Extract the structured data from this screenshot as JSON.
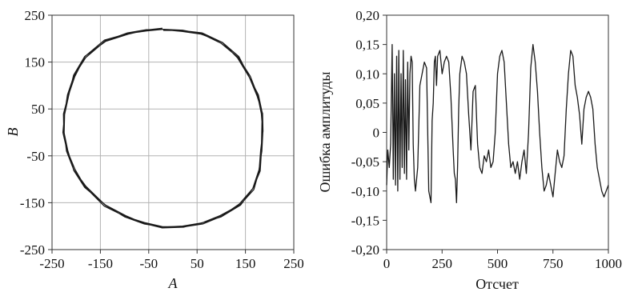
{
  "chart_data": [
    {
      "type": "line",
      "xlabel": "A",
      "ylabel": "B",
      "xlim": [
        -250,
        250
      ],
      "ylim": [
        -250,
        250
      ],
      "xticks": [
        "-250",
        "-150",
        "-50",
        "50",
        "150",
        "250"
      ],
      "yticks": [
        "250",
        "150",
        "50",
        "-50",
        "-150",
        "-250"
      ],
      "grid": true,
      "series": [
        {
          "values_note": "closed loop",
          "x": [
            -20,
            20,
            60,
            100,
            135,
            160,
            175,
            183,
            186,
            184,
            178,
            165,
            140,
            100,
            60,
            20,
            -20,
            -60,
            -100,
            -140,
            -180,
            -205,
            -220,
            -225,
            -224,
            -218,
            -205,
            -180,
            -140,
            -95,
            -55,
            -20
          ],
          "y": [
            220,
            218,
            210,
            190,
            160,
            120,
            80,
            40,
            0,
            -40,
            -80,
            -120,
            -155,
            -180,
            -193,
            -200,
            -202,
            -195,
            -180,
            -155,
            -115,
            -80,
            -40,
            0,
            40,
            80,
            120,
            160,
            195,
            212,
            219,
            220
          ]
        }
      ]
    },
    {
      "type": "line",
      "xlabel": "Отсчет",
      "ylabel": "Ошибка амплитуды",
      "xlim": [
        0,
        1000
      ],
      "ylim": [
        -0.2,
        0.2
      ],
      "xticks": [
        "0",
        "250",
        "500",
        "750",
        "1000"
      ],
      "yticks": [
        "0,20",
        "0,15",
        "0,10",
        "0,05",
        "0",
        "-0,05",
        "-0,10",
        "-0,15",
        "-0,20"
      ],
      "grid": false,
      "series": [
        {
          "x": [
            0,
            5,
            12,
            18,
            25,
            30,
            35,
            40,
            45,
            50,
            55,
            60,
            65,
            70,
            75,
            80,
            85,
            90,
            95,
            100,
            105,
            110,
            115,
            120,
            125,
            130,
            140,
            150,
            160,
            170,
            180,
            190,
            200,
            205,
            210,
            215,
            220,
            225,
            230,
            240,
            250,
            260,
            270,
            280,
            290,
            300,
            305,
            310,
            315,
            320,
            325,
            330,
            340,
            350,
            360,
            370,
            380,
            390,
            400,
            410,
            420,
            430,
            440,
            450,
            460,
            470,
            480,
            490,
            500,
            510,
            520,
            530,
            540,
            550,
            560,
            570,
            580,
            590,
            600,
            610,
            620,
            630,
            640,
            650,
            660,
            670,
            680,
            690,
            700,
            710,
            720,
            730,
            740,
            750,
            760,
            770,
            780,
            790,
            800,
            810,
            820,
            830,
            840,
            850,
            860,
            870,
            880,
            890,
            900,
            910,
            920,
            930,
            940,
            950,
            960,
            970,
            980,
            990,
            1000
          ],
          "values": [
            -0.09,
            -0.03,
            -0.06,
            -0.02,
            0.15,
            -0.08,
            0.1,
            -0.09,
            0.13,
            -0.1,
            0.14,
            -0.08,
            0.1,
            -0.06,
            0.14,
            -0.07,
            0.09,
            -0.08,
            0.12,
            -0.03,
            0.1,
            0.13,
            0.12,
            -0.02,
            -0.08,
            -0.1,
            -0.06,
            0.08,
            0.1,
            0.12,
            0.11,
            -0.1,
            -0.12,
            0.02,
            0.05,
            0.12,
            0.13,
            0.08,
            0.13,
            0.14,
            0.1,
            0.12,
            0.13,
            0.12,
            0.06,
            -0.03,
            -0.07,
            -0.08,
            -0.12,
            -0.06,
            0.04,
            0.1,
            0.13,
            0.12,
            0.1,
            0.03,
            -0.03,
            0.07,
            0.08,
            -0.02,
            -0.06,
            -0.07,
            -0.04,
            -0.05,
            -0.03,
            -0.06,
            -0.05,
            0.0,
            0.1,
            0.13,
            0.14,
            0.12,
            0.05,
            -0.02,
            -0.06,
            -0.05,
            -0.07,
            -0.05,
            -0.08,
            -0.05,
            -0.03,
            -0.07,
            0.0,
            0.11,
            0.15,
            0.12,
            0.07,
            0.0,
            -0.06,
            -0.1,
            -0.09,
            -0.07,
            -0.09,
            -0.11,
            -0.07,
            -0.03,
            -0.05,
            -0.06,
            -0.04,
            0.04,
            0.1,
            0.14,
            0.13,
            0.08,
            0.06,
            0.03,
            -0.02,
            0.04,
            0.06,
            0.07,
            0.06,
            0.04,
            -0.02,
            -0.06,
            -0.08,
            -0.1,
            -0.11,
            -0.1,
            -0.09
          ]
        }
      ]
    }
  ]
}
